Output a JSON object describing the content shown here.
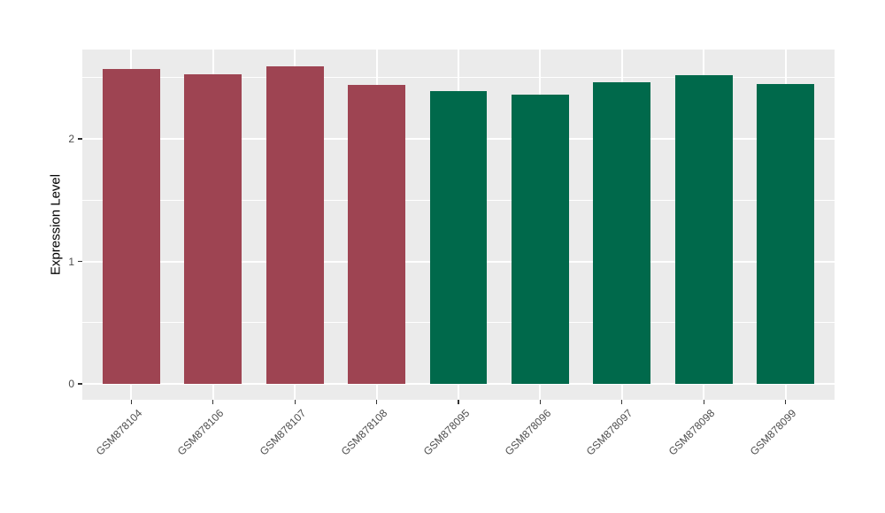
{
  "figure": {
    "background_color": "#FFFFFF",
    "panel_background_color": "#EBEBEB",
    "grid_color": "#FFFFFF",
    "tick_label_color": "#4D4D4D",
    "axis_title_color": "#000000",
    "tick_mark_color": "#333333"
  },
  "chart_data": {
    "type": "bar",
    "title": "",
    "xlabel": "",
    "ylabel": "Expression Level",
    "categories": [
      "GSM878104",
      "GSM878106",
      "GSM878107",
      "GSM878108",
      "GSM878095",
      "GSM878096",
      "GSM878097",
      "GSM878098",
      "GSM878099"
    ],
    "values": [
      2.57,
      2.53,
      2.59,
      2.44,
      2.39,
      2.36,
      2.46,
      2.52,
      2.45
    ],
    "bar_colors": [
      "#9E4452",
      "#9E4452",
      "#9E4452",
      "#9E4452",
      "#00694B",
      "#00694B",
      "#00694B",
      "#00694B",
      "#00694B"
    ],
    "groups": [
      {
        "color": "#9E4452",
        "samples": [
          "GSM878104",
          "GSM878106",
          "GSM878107",
          "GSM878108"
        ]
      },
      {
        "color": "#00694B",
        "samples": [
          "GSM878095",
          "GSM878096",
          "GSM878097",
          "GSM878098",
          "GSM878099"
        ]
      }
    ],
    "y_axis": {
      "ticks": [
        0,
        1,
        2
      ],
      "tick_labels": [
        "0",
        "1",
        "2"
      ],
      "minor_ticks": [
        0.5,
        1.5,
        2.5
      ],
      "range": [
        -0.13,
        2.73
      ]
    },
    "x_tick_rotation_deg": 45,
    "grid": true,
    "legend_position": "none"
  }
}
